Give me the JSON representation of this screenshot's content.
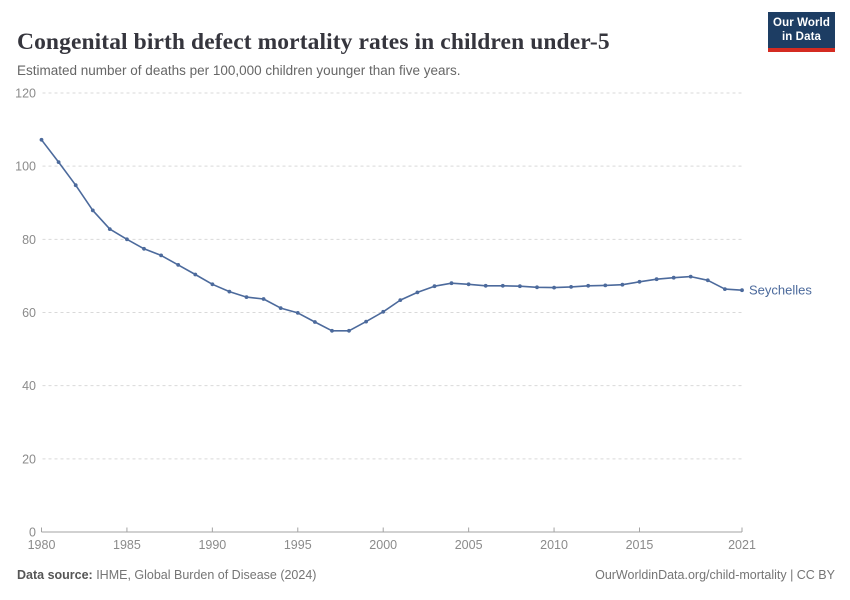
{
  "header": {
    "title": "Congenital birth defect mortality rates in children under-5",
    "subtitle": "Estimated number of deaths per 100,000 children younger than five years."
  },
  "logo": {
    "line1": "Our World",
    "line2": "in Data"
  },
  "chart_data": {
    "type": "line",
    "title": "Congenital birth defect mortality rates in children under-5",
    "subtitle": "Estimated number of deaths per 100,000 children younger than five years.",
    "x": [
      1980,
      1981,
      1982,
      1983,
      1984,
      1985,
      1986,
      1987,
      1988,
      1989,
      1990,
      1991,
      1992,
      1993,
      1994,
      1995,
      1996,
      1997,
      1998,
      1999,
      2000,
      2001,
      2002,
      2003,
      2004,
      2005,
      2006,
      2007,
      2008,
      2009,
      2010,
      2011,
      2012,
      2013,
      2014,
      2015,
      2016,
      2017,
      2018,
      2019,
      2020,
      2021
    ],
    "series": [
      {
        "name": "Seychelles",
        "color": "#4C6A9C",
        "values": [
          107.2,
          101.1,
          94.8,
          87.9,
          82.8,
          80.0,
          77.4,
          75.6,
          73.0,
          70.4,
          67.7,
          65.7,
          64.2,
          63.7,
          61.2,
          59.9,
          57.4,
          55.0,
          55.0,
          57.5,
          60.2,
          63.4,
          65.5,
          67.2,
          68.0,
          67.7,
          67.3,
          67.3,
          67.2,
          66.9,
          66.8,
          67.0,
          67.3,
          67.4,
          67.6,
          68.4,
          69.1,
          69.5,
          69.8,
          68.8,
          66.4,
          66.1
        ]
      }
    ],
    "xlim": [
      1980,
      2021
    ],
    "ylim": [
      0,
      120
    ],
    "xticks": [
      1980,
      1985,
      1990,
      1995,
      2000,
      2005,
      2010,
      2015,
      2021
    ],
    "yticks": [
      0,
      20,
      40,
      60,
      80,
      100,
      120
    ],
    "grid": "horizontal-dashed",
    "legend": "end-of-line-label",
    "xlabel": "",
    "ylabel": ""
  },
  "footer": {
    "source_label": "Data source:",
    "source_value": " IHME, Global Burden of Disease (2024)",
    "credit": "OurWorldinData.org/child-mortality | CC BY"
  },
  "colors": {
    "line": "#4C6A9C",
    "logo_bg": "#1d3d63",
    "logo_bar": "#d42b21",
    "grid": "#d9d9d9",
    "axis": "#a3a3a3",
    "tick_label": "#8b8b8b",
    "title": "#35353d",
    "subtitle": "#666666",
    "footer": "#757575"
  }
}
